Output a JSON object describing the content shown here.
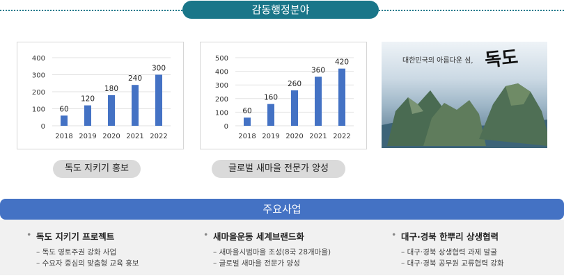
{
  "header": {
    "title": "감동행정분야"
  },
  "charts": [
    {
      "type": "bar",
      "categories": [
        "2018",
        "2019",
        "2020",
        "2021",
        "2022"
      ],
      "values": [
        60,
        120,
        180,
        240,
        300
      ],
      "yticks": [
        "0",
        "100",
        "200",
        "300",
        "400"
      ],
      "ylim": [
        0,
        400
      ],
      "color": "#4472c4",
      "label": "독도 지키기 홍보"
    },
    {
      "type": "bar",
      "categories": [
        "2018",
        "2019",
        "2020",
        "2021",
        "2022"
      ],
      "values": [
        60,
        160,
        260,
        360,
        420
      ],
      "yticks": [
        "0",
        "100",
        "200",
        "300",
        "400",
        "500"
      ],
      "ylim": [
        0,
        500
      ],
      "color": "#4472c4",
      "label": "글로벌 새마을 전문가 양성"
    }
  ],
  "photo": {
    "caption": "대한민국의 아름다운 섬,",
    "big_text": "독도"
  },
  "section": {
    "title": "주요사업"
  },
  "columns": [
    {
      "title": "독도 지키기 프로젝트",
      "items": [
        "독도 영토주권 강화 사업",
        "수요자 중심의 맞춤형 교육 홍보"
      ]
    },
    {
      "title": "새마을운동 세계브랜드화",
      "items": [
        "새마을시범마을 조성(8국 28개마을)",
        "글로벌 새마을 전문가 양성"
      ]
    },
    {
      "title": "대구·경북 한뿌리 상생협력",
      "items": [
        "대구·경북 상생협력 과제 발굴",
        "대구·경북 공무원 교류협력 강화"
      ]
    }
  ]
}
